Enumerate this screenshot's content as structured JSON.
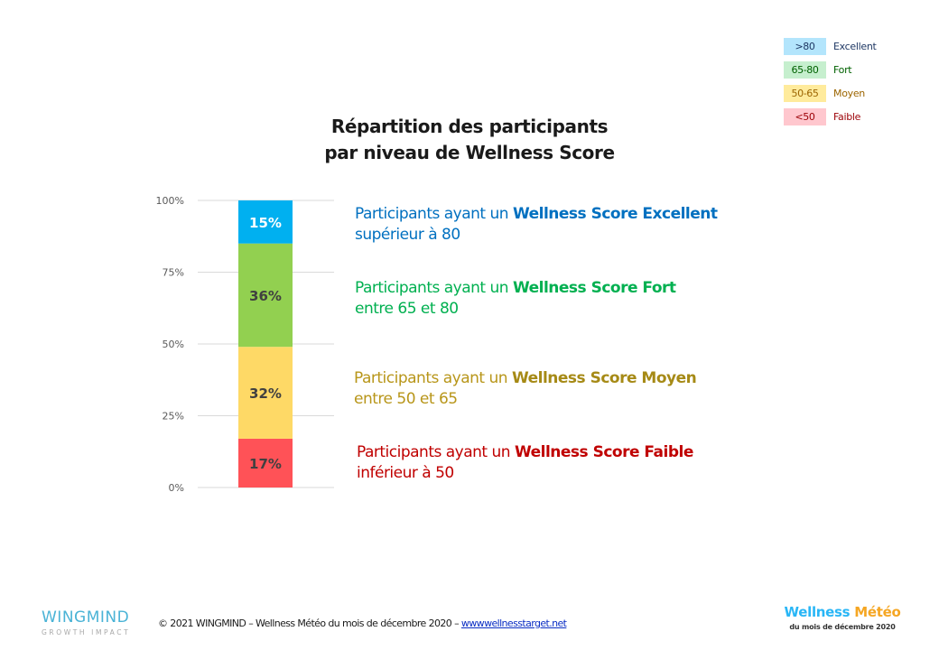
{
  "legend": {
    "items": [
      {
        "range": ">80",
        "label": "Excellent",
        "bg": "#b3e5fc",
        "range_color": "#1f3864",
        "label_color": "#1f3864"
      },
      {
        "range": "65-80",
        "label": "Fort",
        "bg": "#c6efce",
        "range_color": "#006100",
        "label_color": "#006100"
      },
      {
        "range": "50-65",
        "label": "Moyen",
        "bg": "#ffeb9c",
        "range_color": "#9c6500",
        "label_color": "#9c6500"
      },
      {
        "range": "<50",
        "label": "Faible",
        "bg": "#ffc7ce",
        "range_color": "#9c0006",
        "label_color": "#9c0006"
      }
    ]
  },
  "title": {
    "line1": "Répartition des participants",
    "line2": "par niveau de Wellness Score"
  },
  "chart_data": {
    "type": "bar",
    "stacked": true,
    "title": "Répartition des participants par niveau de Wellness Score",
    "categories": [
      ""
    ],
    "series": [
      {
        "name": "Faible",
        "values": [
          17
        ],
        "color": "#ff5257",
        "label": "17%",
        "label_color": "#404040"
      },
      {
        "name": "Moyen",
        "values": [
          32
        ],
        "color": "#fed966",
        "label": "32%",
        "label_color": "#404040"
      },
      {
        "name": "Fort",
        "values": [
          36
        ],
        "color": "#92d050",
        "label": "36%",
        "label_color": "#404040"
      },
      {
        "name": "Excellent",
        "values": [
          15
        ],
        "color": "#00b0f0",
        "label": "15%",
        "label_color": "#ffffff"
      }
    ],
    "yticks": [
      "0%",
      "25%",
      "50%",
      "75%",
      "100%"
    ],
    "ytick_values": [
      0,
      25,
      50,
      75,
      100
    ],
    "ylim": [
      0,
      100
    ],
    "xlabel": "",
    "ylabel": "",
    "grid": true,
    "legend": "none"
  },
  "descriptions": [
    {
      "prefix": "Participants ayant un ",
      "bold": "Wellness Score Excellent",
      "line2": "supérieur à 80",
      "color": "#0070c0",
      "bold_color": "#0070c0"
    },
    {
      "prefix": "Participants ayant un ",
      "bold": "Wellness Score Fort",
      "line2": "entre 65 et 80",
      "color": "#00b050",
      "bold_color": "#00b050"
    },
    {
      "prefix": "Participants ayant un ",
      "bold": "Wellness Score Moyen",
      "line2": "entre 50 et 65",
      "color": "#b8961a",
      "bold_color": "#a68a16"
    },
    {
      "prefix": "Participants ayant un ",
      "bold": "Wellness Score Faible",
      "line2": "inférieur à 50",
      "color": "#c00000",
      "bold_color": "#c00000"
    }
  ],
  "footer": {
    "logo_name": "WINGMIND",
    "logo_tagline": "GROWTH IMPACT",
    "copyright": "© 2021 WINGMIND – Wellness Météo du mois de décembre 2020 – ",
    "link": "wwwwellnesstarget.net",
    "brand_part1": "Wellness",
    "brand_part2": "Météo",
    "brand_part1_color": "#29b6f6",
    "brand_part2_color": "#f5a623",
    "brand_subtitle": "du mois de décembre 2020"
  }
}
